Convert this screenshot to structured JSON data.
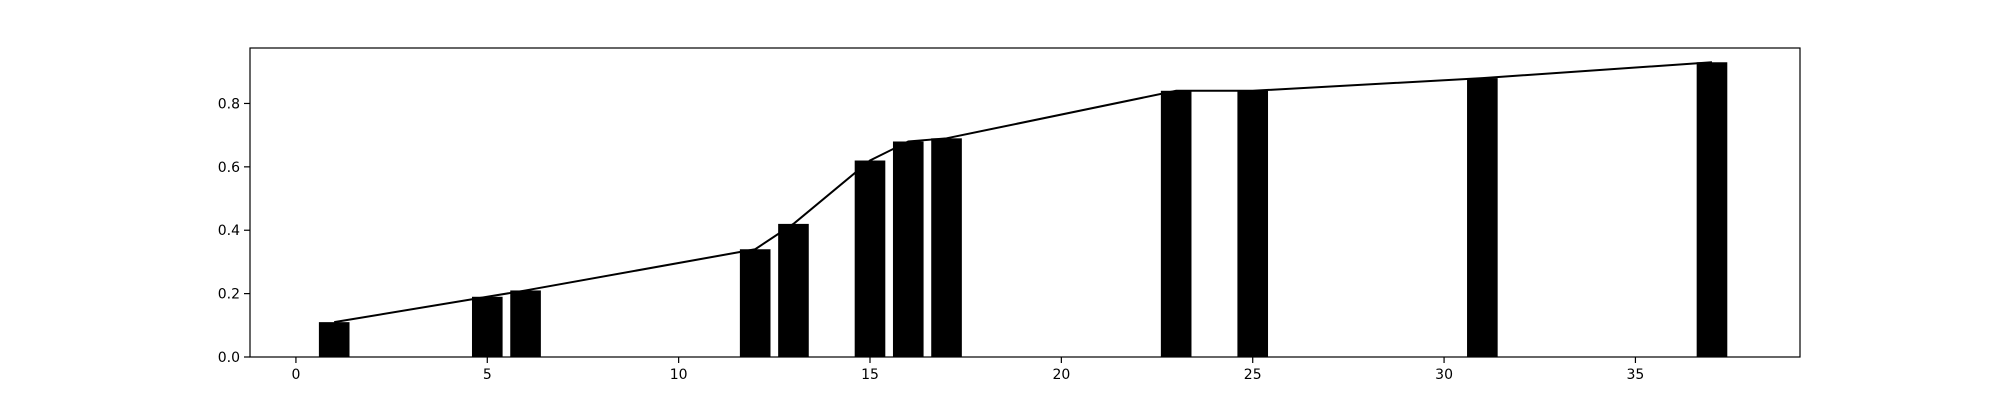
{
  "chart_data": {
    "type": "bar",
    "title": "",
    "xlabel": "",
    "ylabel": "",
    "xlim": [
      -1.2,
      39.3
    ],
    "ylim": [
      0,
      0.975
    ],
    "grid": false,
    "legend": "none",
    "bar_color": "#000000",
    "bar_width": 0.8,
    "line_color": "#000000",
    "x_ticks": [
      0,
      5,
      10,
      15,
      20,
      25,
      30,
      35
    ],
    "y_ticks": [
      0.0,
      0.2,
      0.4,
      0.6,
      0.8
    ],
    "x_tick_labels": [
      "0",
      "5",
      "10",
      "15",
      "20",
      "25",
      "30",
      "35"
    ],
    "y_tick_labels": [
      "0.0",
      "0.2",
      "0.4",
      "0.6",
      "0.8"
    ],
    "bars": [
      {
        "x": 1,
        "value": 0.11
      },
      {
        "x": 5,
        "value": 0.19
      },
      {
        "x": 6,
        "value": 0.21
      },
      {
        "x": 12,
        "value": 0.34
      },
      {
        "x": 13,
        "value": 0.42
      },
      {
        "x": 15,
        "value": 0.62
      },
      {
        "x": 16,
        "value": 0.68
      },
      {
        "x": 17,
        "value": 0.69
      },
      {
        "x": 23,
        "value": 0.84
      },
      {
        "x": 25,
        "value": 0.84
      },
      {
        "x": 31,
        "value": 0.88
      },
      {
        "x": 37,
        "value": 0.93
      }
    ],
    "line": {
      "x": [
        1,
        5,
        6,
        12,
        13,
        15,
        16,
        17,
        23,
        25,
        31,
        37
      ],
      "y": [
        0.11,
        0.19,
        0.21,
        0.34,
        0.42,
        0.62,
        0.68,
        0.69,
        0.84,
        0.84,
        0.88,
        0.93
      ]
    }
  }
}
